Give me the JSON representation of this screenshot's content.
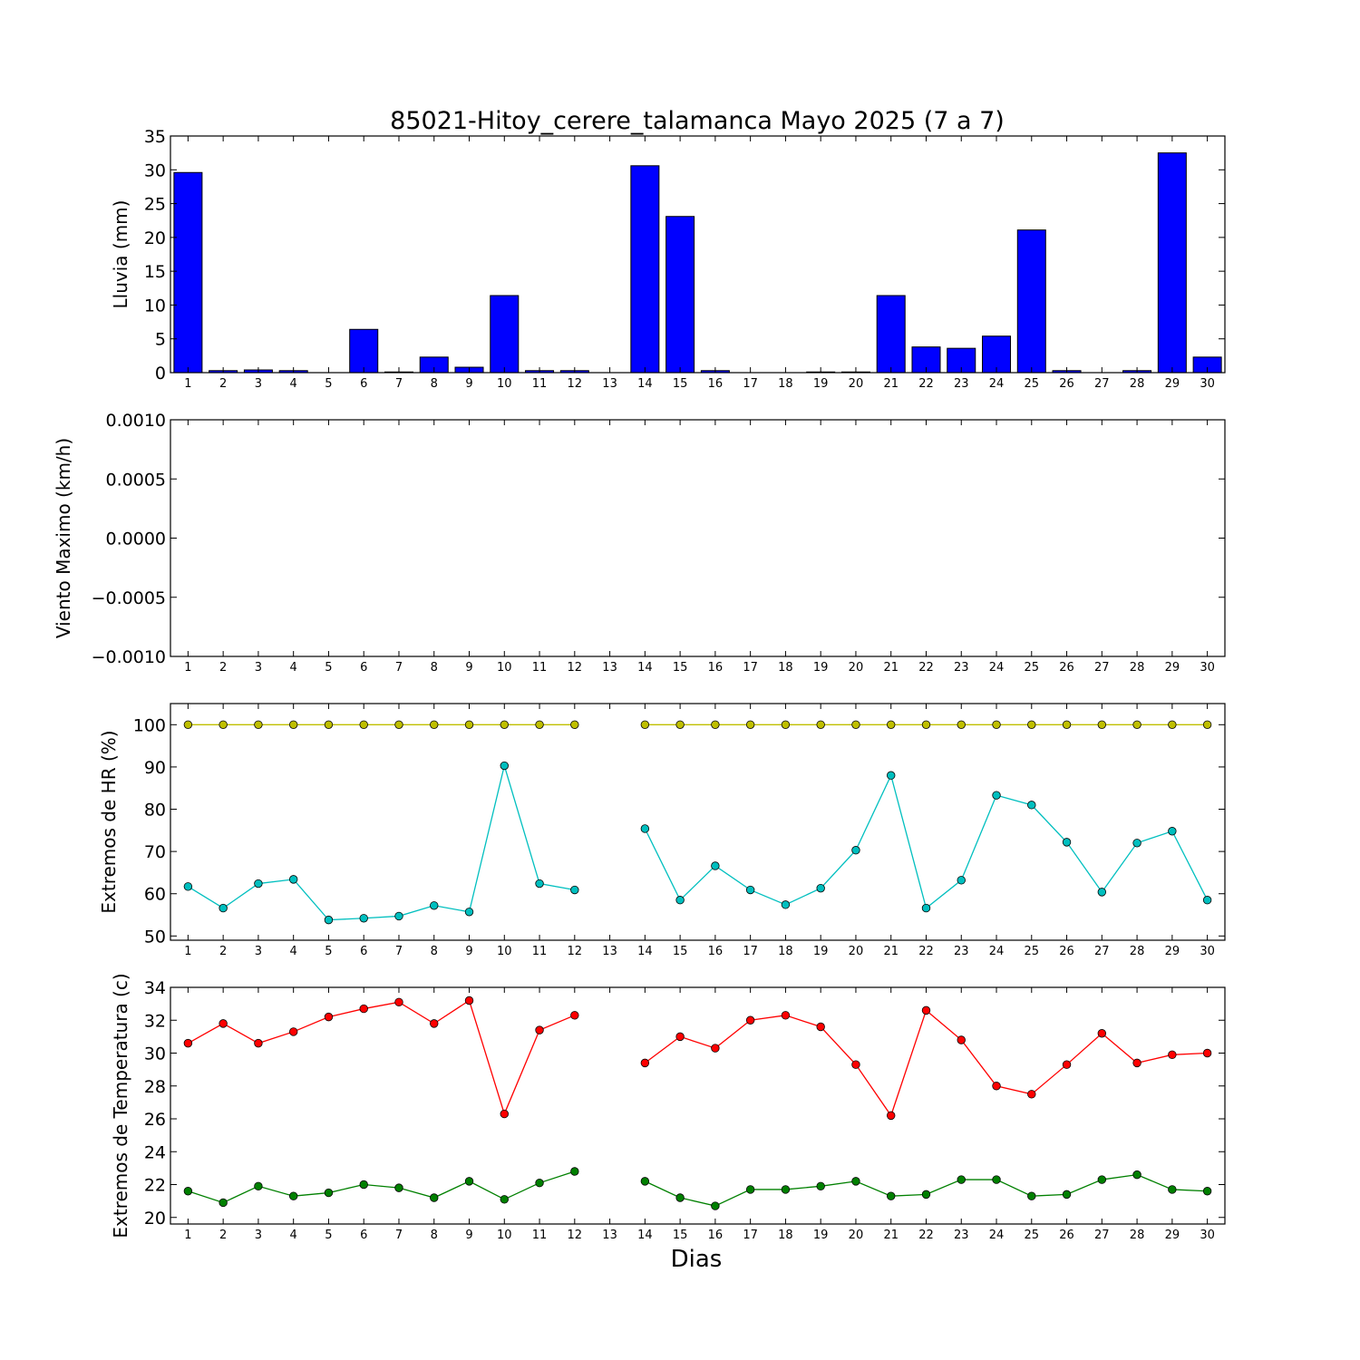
{
  "title": "85021-Hitoy_cerere_talamanca Mayo 2025  (7 a 7)",
  "xlabel": "Dias",
  "colors": {
    "rain_bar": "#0000ff",
    "hr_max": "#bfbf00",
    "hr_min": "#00bfbf",
    "temp_max": "#ff0000",
    "temp_min": "#008000"
  },
  "chart_data": [
    {
      "type": "bar",
      "ylabel": "Lluvia (mm)",
      "ylim": [
        0,
        35
      ],
      "yticks": [
        "0",
        "5",
        "10",
        "15",
        "20",
        "25",
        "30",
        "35"
      ],
      "categories": [
        "1",
        "2",
        "3",
        "4",
        "5",
        "6",
        "7",
        "8",
        "9",
        "10",
        "11",
        "12",
        "13",
        "14",
        "15",
        "16",
        "17",
        "18",
        "19",
        "20",
        "21",
        "22",
        "23",
        "24",
        "25",
        "26",
        "27",
        "28",
        "29",
        "30"
      ],
      "values": [
        29.6,
        0.3,
        0.4,
        0.3,
        0.0,
        6.4,
        0.1,
        2.3,
        0.8,
        11.4,
        0.3,
        0.3,
        0.0,
        30.6,
        23.1,
        0.3,
        0.0,
        0.0,
        0.1,
        0.1,
        11.4,
        3.8,
        3.6,
        5.4,
        21.1,
        0.3,
        0.0,
        0.3,
        32.5,
        2.3
      ]
    },
    {
      "type": "line",
      "ylabel": "Viento Maximo (km/h)",
      "ylim": [
        -0.001,
        0.001
      ],
      "yticks": [
        "−0.0010",
        "−0.0005",
        "0.0000",
        "0.0005",
        "0.0010"
      ],
      "categories": [
        "1",
        "2",
        "3",
        "4",
        "5",
        "6",
        "7",
        "8",
        "9",
        "10",
        "11",
        "12",
        "13",
        "14",
        "15",
        "16",
        "17",
        "18",
        "19",
        "20",
        "21",
        "22",
        "23",
        "24",
        "25",
        "26",
        "27",
        "28",
        "29",
        "30"
      ],
      "series": []
    },
    {
      "type": "line",
      "ylabel": "Extremos de HR (%)",
      "ylim": [
        49,
        105
      ],
      "yticks": [
        "50",
        "60",
        "70",
        "80",
        "90",
        "100"
      ],
      "categories": [
        "1",
        "2",
        "3",
        "4",
        "5",
        "6",
        "7",
        "8",
        "9",
        "10",
        "11",
        "12",
        "13",
        "14",
        "15",
        "16",
        "17",
        "18",
        "19",
        "20",
        "21",
        "22",
        "23",
        "24",
        "25",
        "26",
        "27",
        "28",
        "29",
        "30"
      ],
      "series": [
        {
          "color": "#bfbf00",
          "values": [
            100,
            100,
            100,
            100,
            100,
            100,
            100,
            100,
            100,
            100,
            100,
            100,
            null,
            100,
            100,
            100,
            100,
            100,
            100,
            100,
            100,
            100,
            100,
            100,
            100,
            100,
            100,
            100,
            100,
            100
          ]
        },
        {
          "color": "#00bfbf",
          "values": [
            61.7,
            56.6,
            62.4,
            63.4,
            53.8,
            54.2,
            54.7,
            57.2,
            55.7,
            90.3,
            62.4,
            60.9,
            null,
            75.4,
            58.5,
            66.6,
            60.9,
            57.4,
            61.3,
            70.3,
            88.0,
            56.6,
            63.2,
            83.3,
            81.0,
            72.2,
            60.4,
            72.0,
            74.8,
            58.5
          ]
        }
      ]
    },
    {
      "type": "line",
      "ylabel": "Extremos de Temperatura (c)",
      "ylim": [
        19.6,
        34.0
      ],
      "yticks": [
        "20",
        "22",
        "24",
        "26",
        "28",
        "30",
        "32",
        "34"
      ],
      "categories": [
        "1",
        "2",
        "3",
        "4",
        "5",
        "6",
        "7",
        "8",
        "9",
        "10",
        "11",
        "12",
        "13",
        "14",
        "15",
        "16",
        "17",
        "18",
        "19",
        "20",
        "21",
        "22",
        "23",
        "24",
        "25",
        "26",
        "27",
        "28",
        "29",
        "30"
      ],
      "series": [
        {
          "color": "#ff0000",
          "values": [
            30.6,
            31.8,
            30.6,
            31.3,
            32.2,
            32.7,
            33.1,
            31.8,
            33.2,
            26.3,
            31.4,
            32.3,
            null,
            29.4,
            31.0,
            30.3,
            32.0,
            32.3,
            31.6,
            29.3,
            26.2,
            32.6,
            30.8,
            28.0,
            27.5,
            29.3,
            31.2,
            29.4,
            29.9,
            30.0
          ]
        },
        {
          "color": "#008000",
          "values": [
            21.6,
            20.9,
            21.9,
            21.3,
            21.5,
            22.0,
            21.8,
            21.2,
            22.2,
            21.1,
            22.1,
            22.8,
            null,
            22.2,
            21.2,
            20.7,
            21.7,
            21.7,
            21.9,
            22.2,
            21.3,
            21.4,
            22.3,
            22.3,
            21.3,
            21.4,
            22.3,
            22.6,
            21.7,
            21.6
          ]
        }
      ]
    }
  ]
}
